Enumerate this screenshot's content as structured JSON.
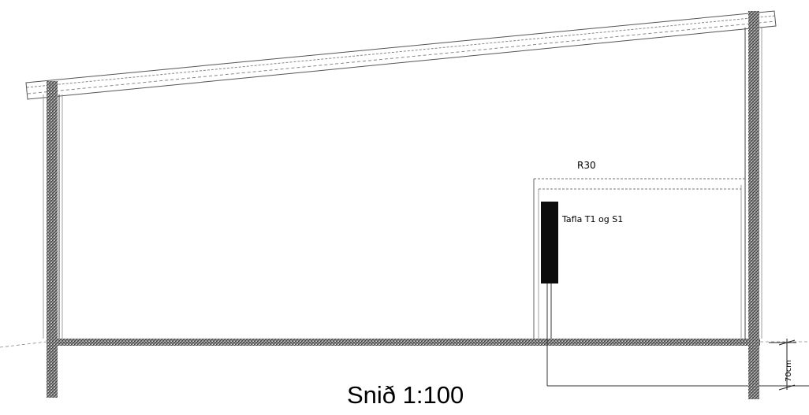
{
  "drawing": {
    "title": "Snið 1:100",
    "labels": {
      "ceiling": "R30",
      "panel": "Tafla T1 og S1",
      "dimension": "70cm"
    }
  }
}
